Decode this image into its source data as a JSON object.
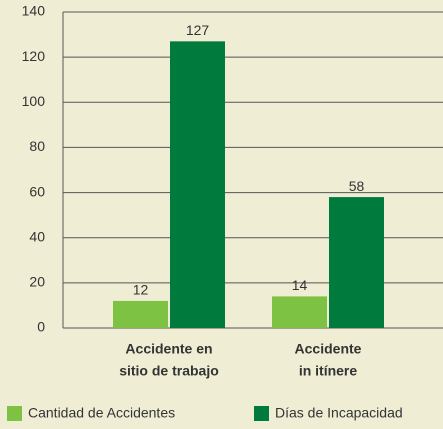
{
  "chart_data": {
    "type": "bar",
    "categories": [
      [
        "Accidente en",
        "sitio de trabajo"
      ],
      [
        "Accidente",
        "in itínere"
      ]
    ],
    "series": [
      {
        "name": "Cantidad de Accidentes",
        "color": "#7dc242",
        "values": [
          12,
          14
        ]
      },
      {
        "name": "Días de Incapacidad",
        "color": "#007a3d",
        "values": [
          127,
          58
        ]
      }
    ],
    "ylim": [
      0,
      140
    ],
    "yticks": [
      0,
      20,
      40,
      60,
      80,
      100,
      120,
      140
    ],
    "grid": true,
    "legend": "bottom"
  }
}
